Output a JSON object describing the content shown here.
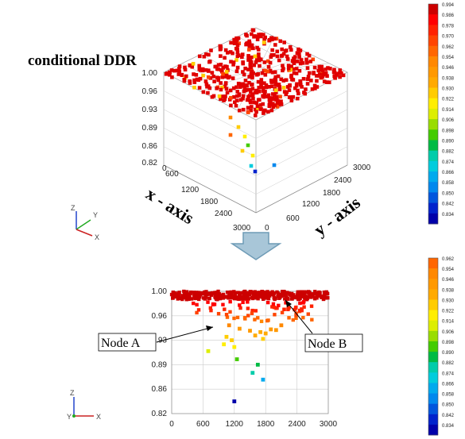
{
  "title": "conditional  DDR",
  "triad_upper": {
    "z": "Z",
    "y": "Y",
    "x": "X"
  },
  "triad_lower": {
    "z": "Z",
    "y": "Y",
    "x": "X"
  },
  "colorbar_top_labels": [
    "0.994",
    "0.986",
    "0.978",
    "0.970",
    "0.962",
    "0.954",
    "0.946",
    "0.938",
    "0.930",
    "0.922",
    "0.914",
    "0.906",
    "0.898",
    "0.890",
    "0.882",
    "0.874",
    "0.866",
    "0.858",
    "0.850",
    "0.842",
    "0.834"
  ],
  "colorbar_bottom_labels": [
    "0.962",
    "0.954",
    "0.946",
    "0.938",
    "0.930",
    "0.922",
    "0.914",
    "0.906",
    "0.898",
    "0.890",
    "0.882",
    "0.874",
    "0.866",
    "0.858",
    "0.850",
    "0.842",
    "0.834"
  ],
  "colorbar_colors": [
    "#cc0000",
    "#ff0000",
    "#ff2200",
    "#ff4400",
    "#ff6600",
    "#ff8800",
    "#ff9900",
    "#ffaa00",
    "#ffcc00",
    "#ffee00",
    "#ddee00",
    "#99dd00",
    "#44cc00",
    "#00bb44",
    "#00ccaa",
    "#00ccdd",
    "#00aaee",
    "#0088ee",
    "#0055dd",
    "#0022cc",
    "#0000aa"
  ],
  "chart_data": [
    {
      "type": "scatter",
      "view": "3d",
      "xlabel": "x - axis",
      "ylabel": "y - axis",
      "x_ticks": [
        "600",
        "1200",
        "1800",
        "2400",
        "3000"
      ],
      "y_ticks": [
        "0",
        "600",
        "1200",
        "1800",
        "2400",
        "3000"
      ],
      "z_ticks": [
        "1.00",
        "0.96",
        "0.93",
        "0.89",
        "0.86",
        "0.82"
      ],
      "zlim": [
        0.82,
        1.0
      ],
      "xlim": [
        0,
        3000
      ],
      "ylim": [
        0,
        3000
      ],
      "origin_label": "0"
    },
    {
      "type": "scatter",
      "view": "xz-projection",
      "x_ticks": [
        "0",
        "600",
        "1200",
        "1800",
        "2400",
        "3000"
      ],
      "y_ticks": [
        "1.00",
        "0.96",
        "0.93",
        "0.89",
        "0.86",
        "0.82"
      ],
      "xlim": [
        0,
        3000
      ],
      "ylim": [
        0.82,
        1.0
      ],
      "grid": true,
      "points": [
        {
          "x": 700,
          "y": 0.912
        },
        {
          "x": 1000,
          "y": 0.922
        },
        {
          "x": 1050,
          "y": 0.933
        },
        {
          "x": 1150,
          "y": 0.928
        },
        {
          "x": 1200,
          "y": 0.918
        },
        {
          "x": 1250,
          "y": 0.9
        },
        {
          "x": 1300,
          "y": 0.945
        },
        {
          "x": 1100,
          "y": 0.95
        },
        {
          "x": 1500,
          "y": 0.942
        },
        {
          "x": 1600,
          "y": 0.935
        },
        {
          "x": 1700,
          "y": 0.94
        },
        {
          "x": 1750,
          "y": 0.93
        },
        {
          "x": 1800,
          "y": 0.938
        },
        {
          "x": 1900,
          "y": 0.944
        },
        {
          "x": 2000,
          "y": 0.943
        },
        {
          "x": 2100,
          "y": 0.95
        },
        {
          "x": 1550,
          "y": 0.88
        },
        {
          "x": 1750,
          "y": 0.87
        },
        {
          "x": 1650,
          "y": 0.892
        },
        {
          "x": 1200,
          "y": 0.838
        }
      ],
      "annotations": [
        {
          "text": "Node A",
          "x": 700,
          "y": 0.912
        },
        {
          "text": "Node B",
          "x": 1900,
          "y": 0.968
        }
      ]
    }
  ]
}
